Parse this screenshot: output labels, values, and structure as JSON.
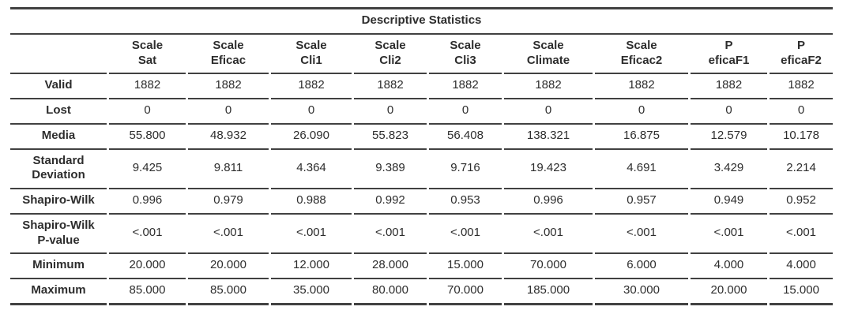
{
  "table": {
    "title": "Descriptive Statistics",
    "columns": [
      "Scale\nSat",
      "Scale\nEficac",
      "Scale\nCli1",
      "Scale\nCli2",
      "Scale\nCli3",
      "Scale\nClimate",
      "Scale\nEficac2",
      "P\neficaF1",
      "P\neficaF2"
    ],
    "rows": [
      {
        "label": "Valid",
        "values": [
          "1882",
          "1882",
          "1882",
          "1882",
          "1882",
          "1882",
          "1882",
          "1882",
          "1882"
        ]
      },
      {
        "label": "Lost",
        "values": [
          "0",
          "0",
          "0",
          "0",
          "0",
          "0",
          "0",
          "0",
          "0"
        ]
      },
      {
        "label": "Media",
        "values": [
          "55.800",
          "48.932",
          "26.090",
          "55.823",
          "56.408",
          "138.321",
          "16.875",
          "12.579",
          "10.178"
        ]
      },
      {
        "label": "Standard\nDeviation",
        "values": [
          "9.425",
          "9.811",
          "4.364",
          "9.389",
          "9.716",
          "19.423",
          "4.691",
          "3.429",
          "2.214"
        ]
      },
      {
        "label": "Shapiro-Wilk",
        "values": [
          "0.996",
          "0.979",
          "0.988",
          "0.992",
          "0.953",
          "0.996",
          "0.957",
          "0.949",
          "0.952"
        ]
      },
      {
        "label": "Shapiro-Wilk\nP-value",
        "values": [
          "<.001",
          "<.001",
          "<.001",
          "<.001",
          "<.001",
          "<.001",
          "<.001",
          "<.001",
          "<.001"
        ]
      },
      {
        "label": "Minimum",
        "values": [
          "20.000",
          "20.000",
          "12.000",
          "28.000",
          "15.000",
          "70.000",
          "6.000",
          "4.000",
          "4.000"
        ]
      },
      {
        "label": "Maximum",
        "values": [
          "85.000",
          "85.000",
          "35.000",
          "80.000",
          "70.000",
          "185.000",
          "30.000",
          "20.000",
          "15.000"
        ]
      }
    ]
  },
  "chart_data": {
    "type": "table",
    "title": "Descriptive Statistics",
    "columns": [
      "Scale Sat",
      "Scale Eficac",
      "Scale Cli1",
      "Scale Cli2",
      "Scale Cli3",
      "Scale Climate",
      "Scale Eficac2",
      "P eficaF1",
      "P eficaF2"
    ],
    "row_labels": [
      "Valid",
      "Lost",
      "Media",
      "Standard Deviation",
      "Shapiro-Wilk",
      "Shapiro-Wilk P-value",
      "Minimum",
      "Maximum"
    ],
    "rows": [
      [
        1882,
        1882,
        1882,
        1882,
        1882,
        1882,
        1882,
        1882,
        1882
      ],
      [
        0,
        0,
        0,
        0,
        0,
        0,
        0,
        0,
        0
      ],
      [
        55.8,
        48.932,
        26.09,
        55.823,
        56.408,
        138.321,
        16.875,
        12.579,
        10.178
      ],
      [
        9.425,
        9.811,
        4.364,
        9.389,
        9.716,
        19.423,
        4.691,
        3.429,
        2.214
      ],
      [
        0.996,
        0.979,
        0.988,
        0.992,
        0.953,
        0.996,
        0.957,
        0.949,
        0.952
      ],
      [
        "<.001",
        "<.001",
        "<.001",
        "<.001",
        "<.001",
        "<.001",
        "<.001",
        "<.001",
        "<.001"
      ],
      [
        20.0,
        20.0,
        12.0,
        28.0,
        15.0,
        70.0,
        6.0,
        4.0,
        4.0
      ],
      [
        85.0,
        85.0,
        35.0,
        80.0,
        70.0,
        185.0,
        30.0,
        20.0,
        15.0
      ]
    ]
  },
  "colors": {
    "text": "#2d2d2d",
    "rule": "#414141",
    "background": "#ffffff"
  }
}
